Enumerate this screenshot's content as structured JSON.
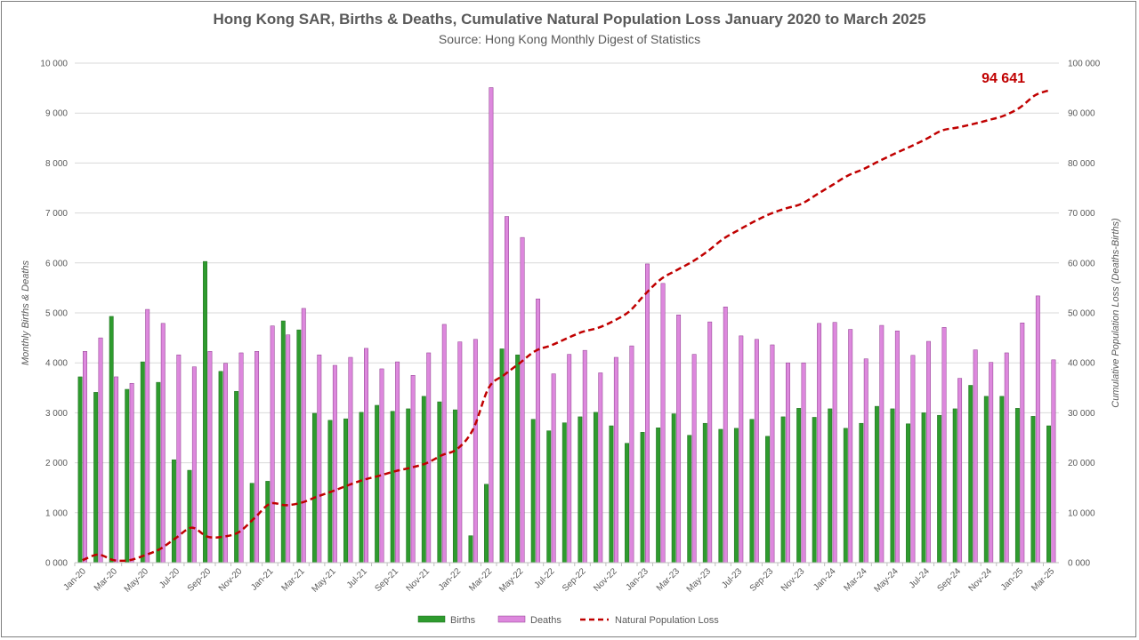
{
  "chart_data": {
    "type": "bar",
    "title": "Hong Kong SAR, Births & Deaths, Cumulative Natural Population Loss January 2020 to March 2025",
    "subtitle": "Source: Hong Kong Monthly Digest of Statistics",
    "ylabel": "Monthly Births & Deaths",
    "y2label": "Cumulative Population Loss (Deaths-Births)",
    "ylim": [
      0,
      10000
    ],
    "y2lim": [
      0,
      100000
    ],
    "ytick_values": [
      0,
      1000,
      2000,
      3000,
      4000,
      5000,
      6000,
      7000,
      8000,
      9000,
      10000
    ],
    "yticks": [
      "0 000",
      "1 000",
      "2 000",
      "3 000",
      "4 000",
      "5 000",
      "6 000",
      "7 000",
      "8 000",
      "9 000",
      "10 000"
    ],
    "y2tick_values": [
      0,
      10000,
      20000,
      30000,
      40000,
      50000,
      60000,
      70000,
      80000,
      90000,
      100000
    ],
    "y2ticks": [
      "0 000",
      "10 000",
      "20 000",
      "30 000",
      "40 000",
      "50 000",
      "60 000",
      "70 000",
      "80 000",
      "90 000",
      "100 000"
    ],
    "grid": true,
    "legend_position": "bottom",
    "categories": [
      "Jan-20",
      "Feb-20",
      "Mar-20",
      "Apr-20",
      "May-20",
      "Jun-20",
      "Jul-20",
      "Aug-20",
      "Sep-20",
      "Oct-20",
      "Nov-20",
      "Dec-20",
      "Jan-21",
      "Feb-21",
      "Mar-21",
      "Apr-21",
      "May-21",
      "Jun-21",
      "Jul-21",
      "Aug-21",
      "Sep-21",
      "Oct-21",
      "Nov-21",
      "Dec-21",
      "Jan-22",
      "Feb-22",
      "Mar-22",
      "Apr-22",
      "May-22",
      "Jun-22",
      "Jul-22",
      "Aug-22",
      "Sep-22",
      "Oct-22",
      "Nov-22",
      "Dec-22",
      "Jan-23",
      "Feb-23",
      "Mar-23",
      "Apr-23",
      "May-23",
      "Jun-23",
      "Jul-23",
      "Aug-23",
      "Sep-23",
      "Oct-23",
      "Nov-23",
      "Dec-23",
      "Jan-24",
      "Feb-24",
      "Mar-24",
      "Apr-24",
      "May-24",
      "Jun-24",
      "Jul-24",
      "Aug-24",
      "Sep-24",
      "Oct-24",
      "Nov-24",
      "Dec-24",
      "Jan-25",
      "Feb-25",
      "Mar-25"
    ],
    "tick_labels": [
      "Jan-20",
      "Mar-20",
      "May-20",
      "Jul-20",
      "Sep-20",
      "Nov-20",
      "Jan-21",
      "Mar-21",
      "May-21",
      "Jul-21",
      "Sep-21",
      "Nov-21",
      "Jan-22",
      "Mar-22",
      "May-22",
      "Jul-22",
      "Sep-22",
      "Nov-22",
      "Jan-23",
      "Mar-23",
      "May-23",
      "Jul-23",
      "Sep-23",
      "Nov-23",
      "Jan-24",
      "Mar-24",
      "May-24",
      "Jul-24",
      "Sep-24",
      "Nov-24",
      "Jan-25",
      "Mar-25"
    ],
    "series": [
      {
        "name": "Births",
        "type": "bar",
        "axis": "left",
        "color": "#2e9b2e",
        "values": [
          3720,
          3410,
          4930,
          3470,
          4020,
          3610,
          2060,
          1850,
          6030,
          3830,
          3430,
          1590,
          1630,
          4840,
          4660,
          2990,
          2850,
          2880,
          3010,
          3150,
          3030,
          3080,
          3330,
          3220,
          3060,
          540,
          1570,
          4280,
          4160,
          2870,
          2640,
          2800,
          2920,
          3010,
          2740,
          2390,
          2610,
          2700,
          2980,
          2550,
          2790,
          2670,
          2690,
          2870,
          2530,
          2920,
          3090,
          2910,
          3080,
          2690,
          2790,
          3130,
          3080,
          2780,
          3000,
          2950,
          3080,
          3550,
          3330,
          3330,
          3090,
          2930,
          2740
        ]
      },
      {
        "name": "Deaths",
        "type": "bar",
        "axis": "left",
        "color": "#dd88dd",
        "values": [
          4230,
          4500,
          3720,
          3590,
          5070,
          4790,
          4160,
          3920,
          4230,
          3990,
          4200,
          4230,
          4740,
          4560,
          5090,
          4160,
          3950,
          4110,
          4290,
          3880,
          4020,
          3750,
          4200,
          4770,
          4420,
          4470,
          9510,
          6930,
          6510,
          5280,
          3780,
          4170,
          4250,
          3800,
          4110,
          4340,
          5980,
          5590,
          4960,
          4170,
          4820,
          5120,
          4540,
          4470,
          4360,
          4000,
          4000,
          4790,
          4810,
          4670,
          4080,
          4750,
          4640,
          4150,
          4430,
          4710,
          3690,
          4260,
          4010,
          4200,
          4800,
          5340,
          4060
        ]
      },
      {
        "name": "Natural Population Loss",
        "type": "line",
        "axis": "right",
        "style": "dashed",
        "color": "#c00000",
        "values": [
          500,
          1600,
          500,
          500,
          1500,
          2800,
          5000,
          7000,
          5200,
          5200,
          6100,
          8900,
          11800,
          11500,
          12000,
          13200,
          14300,
          15500,
          16600,
          17400,
          18300,
          19000,
          19900,
          21500,
          22800,
          26700,
          35000,
          37600,
          40000,
          42400,
          43500,
          44900,
          46200,
          47000,
          48400,
          50300,
          53700,
          56700,
          58500,
          60200,
          62300,
          64800,
          66600,
          68300,
          69800,
          70900,
          71800,
          73700,
          75600,
          77500,
          78800,
          80400,
          81900,
          83300,
          84800,
          86500,
          87100,
          87800,
          88600,
          89500,
          91100,
          93600,
          94641
        ]
      }
    ],
    "annotation": "94 641"
  }
}
